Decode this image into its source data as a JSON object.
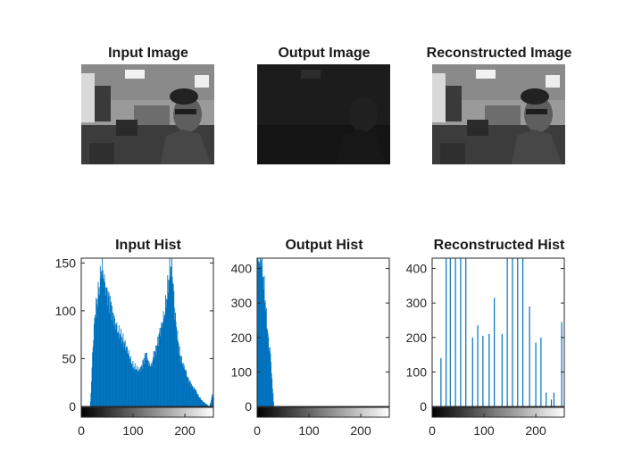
{
  "figure": {
    "colors": {
      "bar": "#0072BD",
      "axis": "#262626",
      "title": "#1a1a1a"
    }
  },
  "images": [
    {
      "title": "Input Image",
      "tone": "normal"
    },
    {
      "title": "Output Image",
      "tone": "dark"
    },
    {
      "title": "Reconstructed Image",
      "tone": "normal"
    }
  ],
  "chart_data": [
    {
      "type": "bar",
      "title": "Input Hist",
      "xlim": [
        0,
        255
      ],
      "ylim": [
        0,
        155
      ],
      "xticks": [
        0,
        100,
        200
      ],
      "yticks": [
        0,
        50,
        100,
        150
      ],
      "colorbar": "grayscale",
      "bins_start": 0,
      "bin_width": 1,
      "profile_knots": [
        [
          0,
          0
        ],
        [
          17,
          0
        ],
        [
          19,
          20
        ],
        [
          22,
          60
        ],
        [
          26,
          95
        ],
        [
          30,
          110
        ],
        [
          35,
          125
        ],
        [
          40,
          150
        ],
        [
          45,
          128
        ],
        [
          50,
          118
        ],
        [
          55,
          110
        ],
        [
          60,
          98
        ],
        [
          65,
          88
        ],
        [
          70,
          80
        ],
        [
          80,
          70
        ],
        [
          90,
          58
        ],
        [
          95,
          48
        ],
        [
          100,
          42
        ],
        [
          110,
          38
        ],
        [
          115,
          40
        ],
        [
          120,
          48
        ],
        [
          125,
          55
        ],
        [
          130,
          45
        ],
        [
          135,
          42
        ],
        [
          140,
          55
        ],
        [
          145,
          60
        ],
        [
          150,
          75
        ],
        [
          155,
          85
        ],
        [
          160,
          95
        ],
        [
          165,
          115
        ],
        [
          170,
          140
        ],
        [
          173,
          150
        ],
        [
          176,
          140
        ],
        [
          180,
          100
        ],
        [
          185,
          75
        ],
        [
          190,
          55
        ],
        [
          195,
          45
        ],
        [
          200,
          40
        ],
        [
          205,
          30
        ],
        [
          210,
          25
        ],
        [
          215,
          20
        ],
        [
          220,
          18
        ],
        [
          225,
          12
        ],
        [
          230,
          8
        ],
        [
          235,
          5
        ],
        [
          240,
          3
        ],
        [
          247,
          0
        ],
        [
          250,
          5
        ],
        [
          252,
          12
        ],
        [
          255,
          10
        ]
      ]
    },
    {
      "type": "bar",
      "title": "Output Hist",
      "xlim": [
        0,
        255
      ],
      "ylim": [
        0,
        430
      ],
      "xticks": [
        0,
        100,
        200
      ],
      "yticks": [
        0,
        100,
        200,
        300,
        400
      ],
      "colorbar": "grayscale",
      "bins_start": 0,
      "bin_width": 1,
      "profile_knots": [
        [
          0,
          0
        ],
        [
          1,
          430
        ],
        [
          3,
          430
        ],
        [
          5,
          430
        ],
        [
          8,
          430
        ],
        [
          10,
          420
        ],
        [
          12,
          360
        ],
        [
          15,
          320
        ],
        [
          18,
          250
        ],
        [
          20,
          220
        ],
        [
          22,
          180
        ],
        [
          25,
          160
        ],
        [
          27,
          120
        ],
        [
          29,
          60
        ],
        [
          31,
          30
        ],
        [
          32,
          0
        ],
        [
          255,
          0
        ]
      ]
    },
    {
      "type": "bar",
      "title": "Reconstructed Hist",
      "xlim": [
        0,
        255
      ],
      "ylim": [
        0,
        430
      ],
      "xticks": [
        0,
        100,
        200
      ],
      "yticks": [
        0,
        100,
        200,
        300,
        400
      ],
      "colorbar": "grayscale",
      "x": [
        17,
        27,
        35,
        45,
        55,
        65,
        78,
        88,
        98,
        110,
        120,
        135,
        145,
        155,
        165,
        175,
        188,
        200,
        210,
        220,
        230,
        235,
        250
      ],
      "values": [
        140,
        430,
        430,
        430,
        430,
        430,
        200,
        235,
        205,
        210,
        315,
        210,
        430,
        430,
        430,
        430,
        290,
        185,
        200,
        40,
        20,
        40,
        245
      ]
    }
  ]
}
